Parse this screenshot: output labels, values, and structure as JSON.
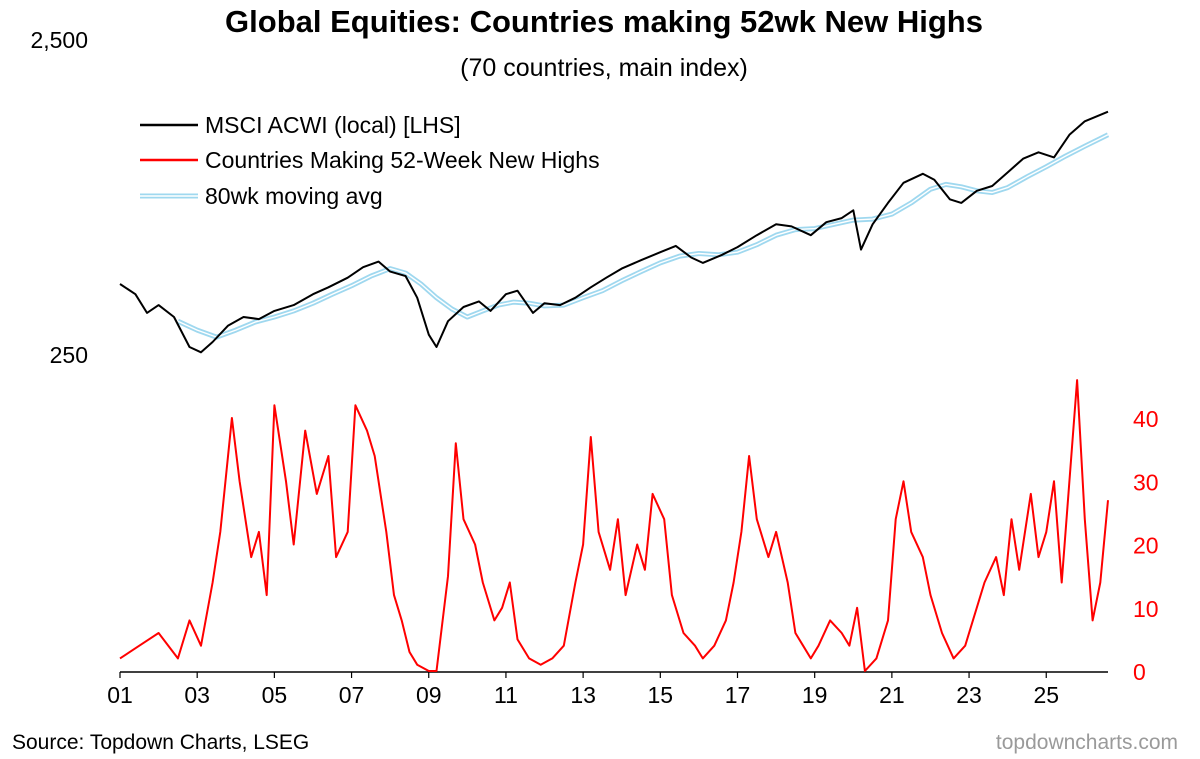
{
  "chart_data": {
    "type": "line",
    "title": "Global Equities: Countries making 52wk New Highs",
    "subtitle": "(70 countries, main index)",
    "x_ticks": [
      "01",
      "03",
      "05",
      "07",
      "09",
      "11",
      "13",
      "15",
      "17",
      "19",
      "21",
      "23",
      "25"
    ],
    "x_range": [
      2001.0,
      2026.6
    ],
    "left_axis": {
      "scale": "log",
      "ticks": [
        250,
        2500
      ],
      "tick_labels": [
        "250",
        "2,500"
      ],
      "range": [
        230,
        2600
      ]
    },
    "right_axis": {
      "scale": "linear",
      "ticks": [
        0,
        10,
        20,
        30,
        40
      ],
      "tick_labels": [
        "0",
        "10",
        "20",
        "30",
        "40"
      ],
      "range": [
        0,
        46
      ]
    },
    "legend": {
      "position": "top-left"
    },
    "series": [
      {
        "name": "MSCI ACWI (local) [LHS]",
        "axis": "left",
        "color": "#000000",
        "points": [
          [
            2001.0,
            420
          ],
          [
            2001.4,
            390
          ],
          [
            2001.7,
            340
          ],
          [
            2002.0,
            360
          ],
          [
            2002.4,
            330
          ],
          [
            2002.8,
            265
          ],
          [
            2003.1,
            255
          ],
          [
            2003.4,
            275
          ],
          [
            2003.8,
            310
          ],
          [
            2004.2,
            330
          ],
          [
            2004.6,
            325
          ],
          [
            2005.0,
            345
          ],
          [
            2005.5,
            360
          ],
          [
            2006.0,
            390
          ],
          [
            2006.4,
            410
          ],
          [
            2006.9,
            440
          ],
          [
            2007.3,
            475
          ],
          [
            2007.7,
            495
          ],
          [
            2008.0,
            460
          ],
          [
            2008.4,
            445
          ],
          [
            2008.7,
            380
          ],
          [
            2009.0,
            290
          ],
          [
            2009.2,
            265
          ],
          [
            2009.5,
            320
          ],
          [
            2009.9,
            355
          ],
          [
            2010.3,
            370
          ],
          [
            2010.6,
            345
          ],
          [
            2011.0,
            390
          ],
          [
            2011.3,
            400
          ],
          [
            2011.7,
            340
          ],
          [
            2012.0,
            365
          ],
          [
            2012.4,
            360
          ],
          [
            2012.8,
            380
          ],
          [
            2013.2,
            410
          ],
          [
            2013.6,
            440
          ],
          [
            2014.0,
            470
          ],
          [
            2014.5,
            500
          ],
          [
            2015.0,
            530
          ],
          [
            2015.4,
            555
          ],
          [
            2015.8,
            510
          ],
          [
            2016.1,
            490
          ],
          [
            2016.6,
            520
          ],
          [
            2017.0,
            550
          ],
          [
            2017.5,
            600
          ],
          [
            2018.0,
            650
          ],
          [
            2018.4,
            640
          ],
          [
            2018.9,
            600
          ],
          [
            2019.3,
            660
          ],
          [
            2019.7,
            680
          ],
          [
            2020.0,
            720
          ],
          [
            2020.2,
            540
          ],
          [
            2020.5,
            650
          ],
          [
            2020.9,
            760
          ],
          [
            2021.3,
            880
          ],
          [
            2021.8,
            940
          ],
          [
            2022.1,
            900
          ],
          [
            2022.5,
            780
          ],
          [
            2022.8,
            760
          ],
          [
            2023.2,
            830
          ],
          [
            2023.6,
            860
          ],
          [
            2024.0,
            950
          ],
          [
            2024.4,
            1050
          ],
          [
            2024.8,
            1100
          ],
          [
            2025.2,
            1060
          ],
          [
            2025.6,
            1250
          ],
          [
            2026.0,
            1380
          ],
          [
            2026.6,
            1480
          ]
        ]
      },
      {
        "name": "Countries Making 52-Week New Highs",
        "axis": "right",
        "color": "#ff0000",
        "points": [
          [
            2001.0,
            2
          ],
          [
            2001.5,
            4
          ],
          [
            2002.0,
            6
          ],
          [
            2002.5,
            2
          ],
          [
            2002.8,
            8
          ],
          [
            2003.1,
            4
          ],
          [
            2003.4,
            14
          ],
          [
            2003.6,
            22
          ],
          [
            2003.9,
            40
          ],
          [
            2004.1,
            30
          ],
          [
            2004.4,
            18
          ],
          [
            2004.6,
            22
          ],
          [
            2004.8,
            12
          ],
          [
            2005.0,
            42
          ],
          [
            2005.3,
            30
          ],
          [
            2005.5,
            20
          ],
          [
            2005.8,
            38
          ],
          [
            2006.1,
            28
          ],
          [
            2006.4,
            34
          ],
          [
            2006.6,
            18
          ],
          [
            2006.9,
            22
          ],
          [
            2007.1,
            42
          ],
          [
            2007.4,
            38
          ],
          [
            2007.6,
            34
          ],
          [
            2007.9,
            22
          ],
          [
            2008.1,
            12
          ],
          [
            2008.3,
            8
          ],
          [
            2008.5,
            3
          ],
          [
            2008.7,
            1
          ],
          [
            2009.0,
            0
          ],
          [
            2009.2,
            0
          ],
          [
            2009.5,
            15
          ],
          [
            2009.7,
            36
          ],
          [
            2009.9,
            24
          ],
          [
            2010.2,
            20
          ],
          [
            2010.4,
            14
          ],
          [
            2010.7,
            8
          ],
          [
            2010.9,
            10
          ],
          [
            2011.1,
            14
          ],
          [
            2011.3,
            5
          ],
          [
            2011.6,
            2
          ],
          [
            2011.9,
            1
          ],
          [
            2012.2,
            2
          ],
          [
            2012.5,
            4
          ],
          [
            2012.8,
            14
          ],
          [
            2013.0,
            20
          ],
          [
            2013.2,
            37
          ],
          [
            2013.4,
            22
          ],
          [
            2013.7,
            16
          ],
          [
            2013.9,
            24
          ],
          [
            2014.1,
            12
          ],
          [
            2014.4,
            20
          ],
          [
            2014.6,
            16
          ],
          [
            2014.8,
            28
          ],
          [
            2015.1,
            24
          ],
          [
            2015.3,
            12
          ],
          [
            2015.6,
            6
          ],
          [
            2015.9,
            4
          ],
          [
            2016.1,
            2
          ],
          [
            2016.4,
            4
          ],
          [
            2016.7,
            8
          ],
          [
            2016.9,
            14
          ],
          [
            2017.1,
            22
          ],
          [
            2017.3,
            34
          ],
          [
            2017.5,
            24
          ],
          [
            2017.8,
            18
          ],
          [
            2018.0,
            22
          ],
          [
            2018.3,
            14
          ],
          [
            2018.5,
            6
          ],
          [
            2018.7,
            4
          ],
          [
            2018.9,
            2
          ],
          [
            2019.1,
            4
          ],
          [
            2019.4,
            8
          ],
          [
            2019.7,
            6
          ],
          [
            2019.9,
            4
          ],
          [
            2020.1,
            10
          ],
          [
            2020.3,
            0
          ],
          [
            2020.6,
            2
          ],
          [
            2020.9,
            8
          ],
          [
            2021.1,
            24
          ],
          [
            2021.3,
            30
          ],
          [
            2021.5,
            22
          ],
          [
            2021.8,
            18
          ],
          [
            2022.0,
            12
          ],
          [
            2022.3,
            6
          ],
          [
            2022.6,
            2
          ],
          [
            2022.9,
            4
          ],
          [
            2023.1,
            8
          ],
          [
            2023.4,
            14
          ],
          [
            2023.7,
            18
          ],
          [
            2023.9,
            12
          ],
          [
            2024.1,
            24
          ],
          [
            2024.3,
            16
          ],
          [
            2024.6,
            28
          ],
          [
            2024.8,
            18
          ],
          [
            2025.0,
            22
          ],
          [
            2025.2,
            30
          ],
          [
            2025.4,
            14
          ],
          [
            2025.6,
            30
          ],
          [
            2025.8,
            46
          ],
          [
            2026.0,
            24
          ],
          [
            2026.2,
            8
          ],
          [
            2026.4,
            14
          ],
          [
            2026.6,
            27
          ]
        ]
      },
      {
        "name": "80wk moving avg",
        "axis": "left",
        "color": "#9fd8ef",
        "points": [
          [
            2002.5,
            320
          ],
          [
            2003.0,
            300
          ],
          [
            2003.5,
            285
          ],
          [
            2004.0,
            300
          ],
          [
            2004.5,
            318
          ],
          [
            2005.0,
            330
          ],
          [
            2005.5,
            345
          ],
          [
            2006.0,
            365
          ],
          [
            2006.5,
            390
          ],
          [
            2007.0,
            415
          ],
          [
            2007.5,
            445
          ],
          [
            2008.0,
            470
          ],
          [
            2008.4,
            455
          ],
          [
            2008.8,
            420
          ],
          [
            2009.2,
            380
          ],
          [
            2009.6,
            350
          ],
          [
            2010.0,
            330
          ],
          [
            2010.4,
            345
          ],
          [
            2010.8,
            360
          ],
          [
            2011.2,
            368
          ],
          [
            2011.6,
            365
          ],
          [
            2012.0,
            358
          ],
          [
            2012.5,
            360
          ],
          [
            2013.0,
            380
          ],
          [
            2013.5,
            400
          ],
          [
            2014.0,
            430
          ],
          [
            2014.5,
            460
          ],
          [
            2015.0,
            490
          ],
          [
            2015.5,
            515
          ],
          [
            2016.0,
            525
          ],
          [
            2016.5,
            520
          ],
          [
            2017.0,
            530
          ],
          [
            2017.5,
            560
          ],
          [
            2018.0,
            600
          ],
          [
            2018.5,
            625
          ],
          [
            2019.0,
            630
          ],
          [
            2019.5,
            650
          ],
          [
            2020.0,
            670
          ],
          [
            2020.5,
            675
          ],
          [
            2021.0,
            700
          ],
          [
            2021.5,
            760
          ],
          [
            2022.0,
            840
          ],
          [
            2022.4,
            870
          ],
          [
            2022.8,
            855
          ],
          [
            2023.2,
            830
          ],
          [
            2023.6,
            820
          ],
          [
            2024.0,
            850
          ],
          [
            2024.5,
            920
          ],
          [
            2025.0,
            990
          ],
          [
            2025.5,
            1070
          ],
          [
            2026.0,
            1150
          ],
          [
            2026.6,
            1250
          ]
        ]
      }
    ]
  },
  "footer": {
    "source": "Source: Topdown Charts, LSEG",
    "watermark": "topdowncharts.com"
  }
}
